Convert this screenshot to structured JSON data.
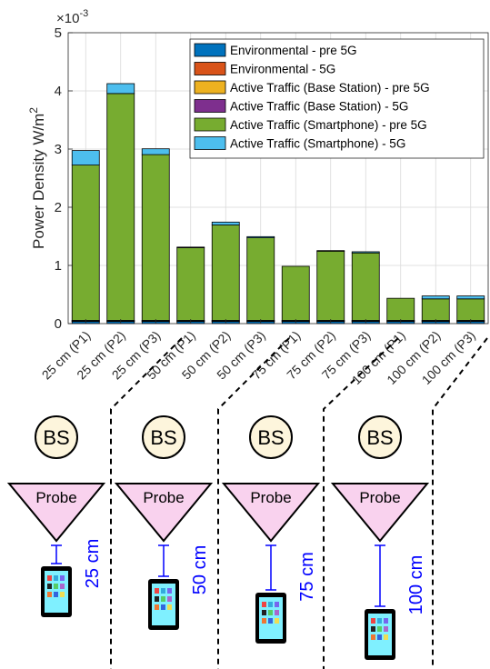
{
  "chart_data": {
    "type": "bar",
    "stacked": true,
    "ylabel": "Power Density W/m",
    "ylabel_superscript": "2",
    "y_multiplier": "×10",
    "y_multiplier_exp": "-3",
    "ylim": [
      0,
      5
    ],
    "yticks": [
      "0",
      "1",
      "2",
      "3",
      "4",
      "5"
    ],
    "grid": true,
    "legend_position": "top-right",
    "categories": [
      "25 cm (P1)",
      "25 cm (P2)",
      "25 cm (P3)",
      "50 cm (P1)",
      "50 cm (P2)",
      "50 cm (P3)",
      "75 cm (P1)",
      "75 cm (P2)",
      "75 cm (P3)",
      "100 cm (P1)",
      "100 cm (P2)",
      "100 cm (P3)"
    ],
    "series": [
      {
        "name": "Environmental - pre 5G",
        "color": "#0072BD",
        "values": [
          0.04,
          0.04,
          0.04,
          0.04,
          0.04,
          0.04,
          0.04,
          0.04,
          0.04,
          0.04,
          0.04,
          0.04
        ]
      },
      {
        "name": "Environmental - 5G",
        "color": "#D95319",
        "values": [
          0.005,
          0.005,
          0.005,
          0.005,
          0.005,
          0.005,
          0.005,
          0.005,
          0.005,
          0.005,
          0.005,
          0.005
        ]
      },
      {
        "name": "Active Traffic (Base Station) - pre 5G",
        "color": "#EDB120",
        "values": [
          0.005,
          0.005,
          0.005,
          0.005,
          0.005,
          0.005,
          0.005,
          0.005,
          0.005,
          0.005,
          0.005,
          0.005
        ]
      },
      {
        "name": "Active Traffic (Base Station) - 5G",
        "color": "#7E2F8E",
        "values": [
          0.005,
          0.005,
          0.005,
          0.005,
          0.005,
          0.005,
          0.005,
          0.005,
          0.005,
          0.005,
          0.005,
          0.005
        ]
      },
      {
        "name": "Active Traffic (Smartphone) - pre 5G",
        "color": "#77AC30",
        "values": [
          2.67,
          3.9,
          2.85,
          1.25,
          1.64,
          1.42,
          0.93,
          1.19,
          1.16,
          0.38,
          0.37,
          0.37
        ]
      },
      {
        "name": "Active Traffic (Smartphone) - 5G",
        "color": "#4DBEEE",
        "values": [
          0.25,
          0.17,
          0.1,
          0.01,
          0.05,
          0.02,
          0.0,
          0.01,
          0.02,
          0.0,
          0.05,
          0.05
        ]
      }
    ]
  },
  "diagram": {
    "station_label": "BS",
    "probe_label": "Probe",
    "distances": [
      "25 cm",
      "50 cm",
      "75 cm",
      "100 cm"
    ]
  },
  "colors": {
    "station_fill": "#FDF5DC",
    "probe_fill": "#F9D2EE",
    "link_color": "#0000FF",
    "phone_screen": "#7FF0FF",
    "phone_body": "#000000"
  }
}
